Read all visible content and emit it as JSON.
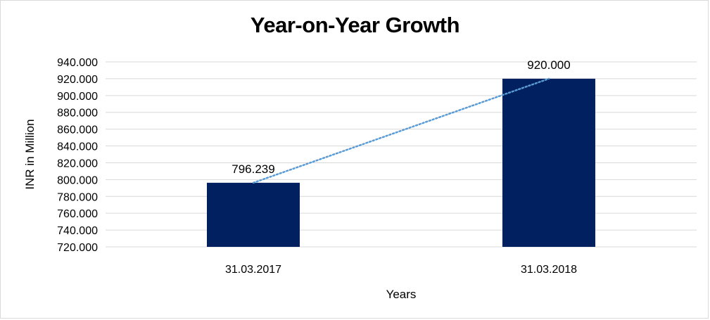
{
  "chart_data": {
    "type": "bar",
    "title": "Year-on-Year Growth",
    "xlabel": "Years",
    "ylabel": "INR in Million",
    "categories": [
      "31.03.2017",
      "31.03.2018"
    ],
    "values": [
      796.239,
      920.0
    ],
    "data_labels": [
      "796.239",
      "920.000"
    ],
    "ylim": [
      720,
      940
    ],
    "yticks": [
      720,
      740,
      760,
      780,
      800,
      820,
      840,
      860,
      880,
      900,
      920,
      940
    ],
    "ytick_labels": [
      "720.000",
      "740.000",
      "760.000",
      "780.000",
      "800.000",
      "820.000",
      "840.000",
      "860.000",
      "880.000",
      "900.000",
      "920.000",
      "940.000"
    ],
    "grid": true,
    "trendline": "linear, dotted",
    "colors": {
      "bar": "#002060",
      "trendline": "#5b9bd5",
      "grid": "#d9d9d9"
    }
  }
}
